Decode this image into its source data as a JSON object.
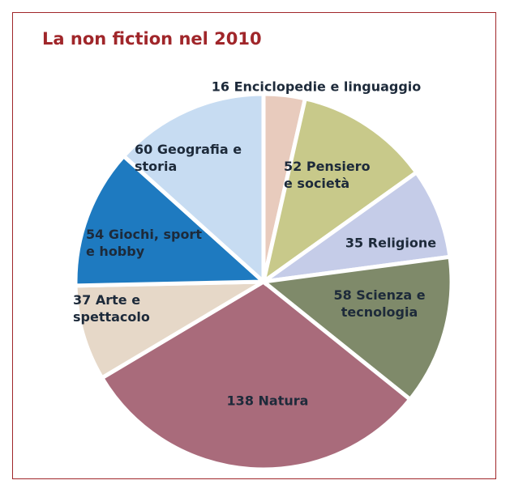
{
  "chart_data": {
    "type": "pie",
    "title": "La non fiction nel 2010",
    "categories": [
      "Enciclopedie e linguaggio",
      "Pensiero e società",
      "Religione",
      "Scienza e tecnologia",
      "Natura",
      "Arte e spettacolo",
      "Giochi, sport e hobby",
      "Geografia e storia"
    ],
    "values": [
      16,
      52,
      35,
      58,
      138,
      37,
      54,
      60
    ],
    "colors": [
      "#e8cbbd",
      "#c8c98a",
      "#c5cce8",
      "#7f8a6a",
      "#a96b7b",
      "#e6d8c8",
      "#1e7ac0",
      "#c7dcf2"
    ]
  }
}
